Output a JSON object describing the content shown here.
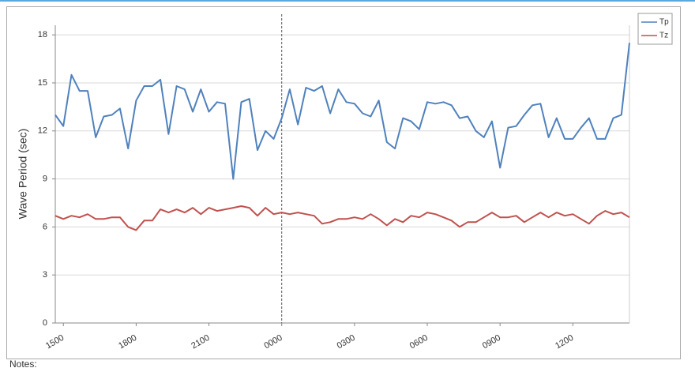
{
  "chart_data": {
    "type": "line",
    "y_label": "Wave Period (sec)",
    "categories": [
      null,
      "1500",
      null,
      null,
      null,
      null,
      null,
      null,
      null,
      null,
      "1800",
      null,
      null,
      null,
      null,
      null,
      null,
      null,
      null,
      "2100",
      null,
      null,
      null,
      null,
      null,
      null,
      null,
      null,
      "0000",
      null,
      null,
      null,
      null,
      null,
      null,
      null,
      null,
      "0300",
      null,
      null,
      null,
      null,
      null,
      null,
      null,
      null,
      "0600",
      null,
      null,
      null,
      null,
      null,
      null,
      null,
      null,
      "0900",
      null,
      null,
      null,
      null,
      null,
      null,
      null,
      null,
      "1200",
      null,
      null,
      null,
      null,
      null,
      null,
      null
    ],
    "series": [
      {
        "name": "Tp",
        "color": "#4f81bd",
        "values": [
          13.0,
          12.3,
          15.5,
          14.5,
          14.5,
          11.6,
          12.9,
          13.0,
          13.4,
          10.9,
          13.9,
          14.8,
          14.8,
          15.2,
          11.8,
          14.8,
          14.6,
          13.2,
          14.6,
          13.2,
          13.8,
          13.7,
          9.0,
          13.8,
          14.0,
          10.8,
          12.0,
          11.5,
          12.8,
          14.6,
          12.4,
          14.7,
          14.5,
          14.8,
          13.1,
          14.6,
          13.8,
          13.7,
          13.1,
          12.9,
          13.9,
          11.3,
          10.9,
          12.8,
          12.6,
          12.1,
          13.8,
          13.7,
          13.8,
          13.6,
          12.8,
          12.9,
          12.0,
          11.6,
          12.6,
          9.7,
          12.2,
          12.3,
          13.0,
          13.6,
          13.7,
          11.6,
          12.8,
          11.5,
          11.5,
          12.2,
          12.8,
          11.5,
          11.5,
          12.8,
          13.0,
          17.5
        ]
      },
      {
        "name": "Tz",
        "color": "#c0504d",
        "values": [
          6.7,
          6.5,
          6.7,
          6.6,
          6.8,
          6.5,
          6.5,
          6.6,
          6.6,
          6.0,
          5.8,
          6.4,
          6.4,
          7.1,
          6.9,
          7.1,
          6.9,
          7.2,
          6.8,
          7.2,
          7.0,
          7.1,
          7.2,
          7.3,
          7.2,
          6.7,
          7.2,
          6.8,
          6.9,
          6.8,
          6.9,
          6.8,
          6.7,
          6.2,
          6.3,
          6.5,
          6.5,
          6.6,
          6.5,
          6.8,
          6.5,
          6.1,
          6.5,
          6.3,
          6.7,
          6.6,
          6.9,
          6.8,
          6.6,
          6.4,
          6.0,
          6.3,
          6.3,
          6.6,
          6.9,
          6.6,
          6.6,
          6.7,
          6.3,
          6.6,
          6.9,
          6.6,
          6.9,
          6.7,
          6.8,
          6.5,
          6.2,
          6.7,
          7.0,
          6.8,
          6.9,
          6.6
        ]
      }
    ],
    "ylim": [
      0,
      18.6
    ],
    "yticks": [
      0,
      3,
      6,
      9,
      12,
      15,
      18
    ],
    "grid": true,
    "marker_line_at": "0000",
    "legend": "top-right"
  },
  "notes_label": "Notes:"
}
